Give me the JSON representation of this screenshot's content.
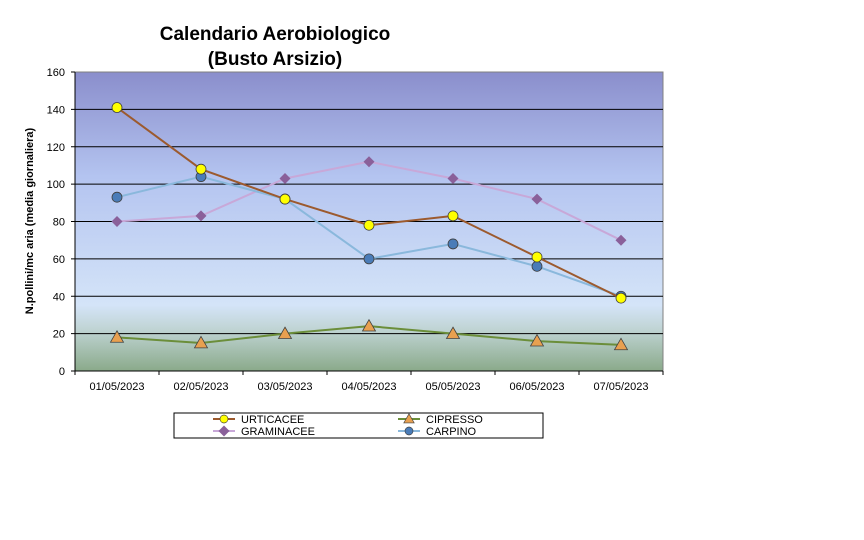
{
  "chart_data": {
    "type": "line",
    "title_line1": "Calendario Aerobiologico",
    "title_line2": "(Busto Arsizio)",
    "ylabel": "N.pollini/mc aria (media giornaliera)",
    "xlabel": "",
    "ylim": [
      0,
      160
    ],
    "y_ticks": [
      "0",
      "20",
      "40",
      "60",
      "80",
      "100",
      "120",
      "140",
      "160"
    ],
    "grid": "horizontal",
    "legend_position": "bottom",
    "categories": [
      "01/05/2023",
      "02/05/2023",
      "03/05/2023",
      "04/05/2023",
      "05/05/2023",
      "06/05/2023",
      "07/05/2023"
    ],
    "series": [
      {
        "name": "URTICACEE",
        "values": [
          141,
          108,
          92,
          78,
          83,
          61,
          39
        ],
        "line_color": "#9c5a2e",
        "marker": "circle",
        "marker_color": "#ffff00"
      },
      {
        "name": "CIPRESSO",
        "values": [
          18,
          15,
          20,
          24,
          20,
          16,
          14
        ],
        "line_color": "#6b8e3a",
        "marker": "triangle",
        "marker_color": "#e8a050"
      },
      {
        "name": "GRAMINACEE",
        "values": [
          80,
          83,
          103,
          112,
          103,
          92,
          70
        ],
        "line_color": "#c8a8d8",
        "marker": "diamond",
        "marker_color": "#8a609a"
      },
      {
        "name": "CARPINO",
        "values": [
          93,
          104,
          92,
          60,
          68,
          56,
          40
        ],
        "line_color": "#8ab8dc",
        "marker": "circle",
        "marker_color": "#4a7cb8"
      }
    ]
  }
}
